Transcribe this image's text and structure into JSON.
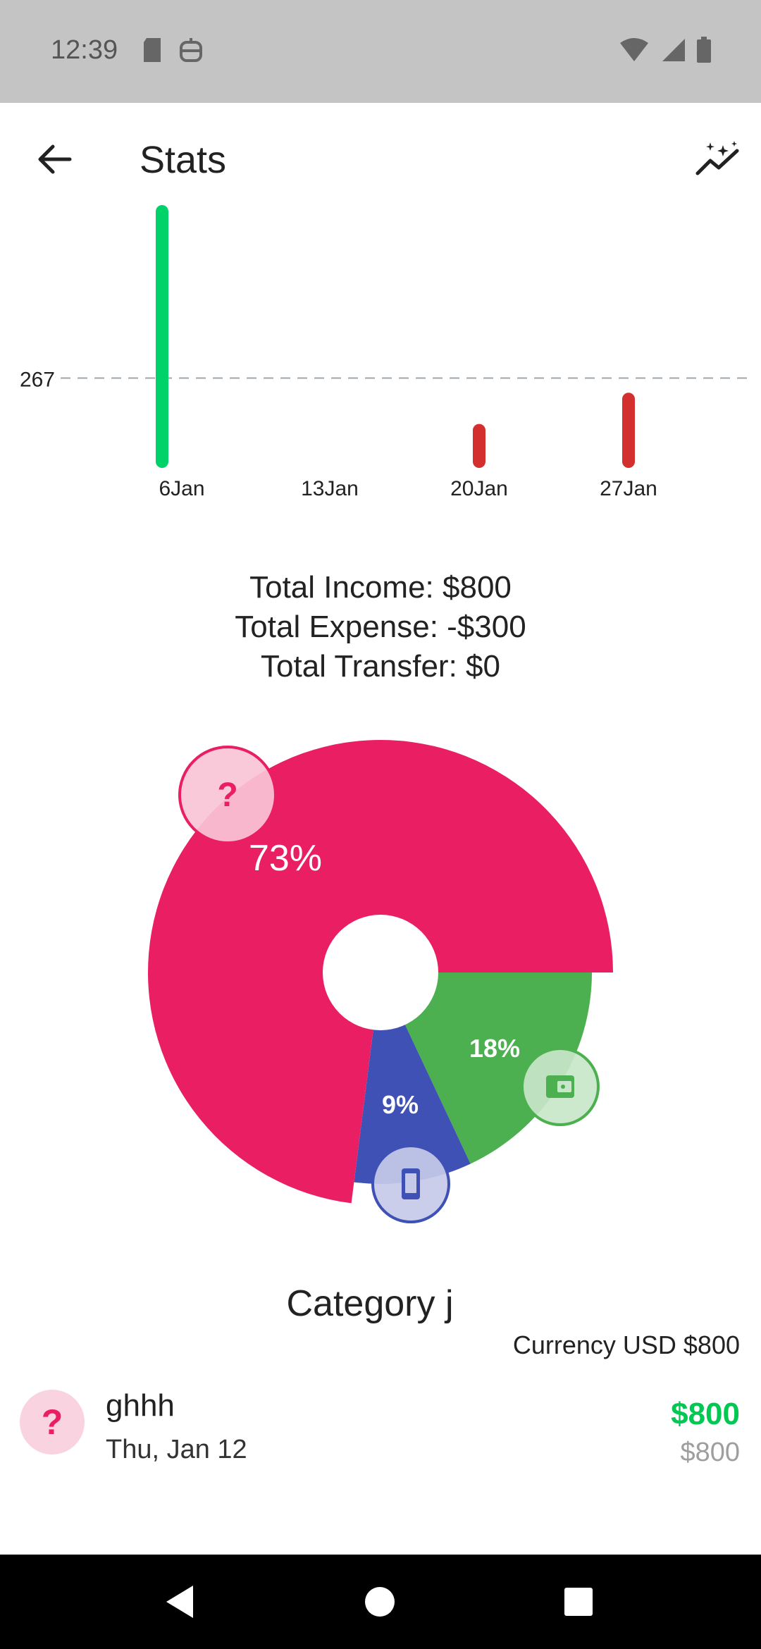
{
  "status_bar": {
    "time": "12:39"
  },
  "app_bar": {
    "title": "Stats"
  },
  "chart_data": [
    {
      "type": "bar",
      "categories": [
        "6Jan",
        "13Jan",
        "20Jan",
        "27Jan"
      ],
      "series": [
        {
          "name": "",
          "values": [
            800,
            0,
            0,
            0
          ],
          "color": "#00d26a"
        },
        {
          "name": "",
          "values": [
            0,
            0,
            100,
            200
          ],
          "color": "#d32f2f"
        }
      ],
      "reference_line": {
        "value": 267,
        "label": "267",
        "style": "dashed"
      },
      "ylim": [
        0,
        800
      ],
      "grid": false
    },
    {
      "type": "pie",
      "labels": [
        "73%",
        "18%",
        "9%"
      ],
      "values": [
        73,
        18,
        9
      ],
      "colors": [
        "#e91e63",
        "#4caf50",
        "#3f51b5"
      ],
      "icons": [
        "question-icon",
        "wallet-icon",
        "phone-icon"
      ]
    }
  ],
  "totals": {
    "income": "Total Income: $800",
    "expense": "Total Expense: -$300",
    "transfer": "Total Transfer: $0"
  },
  "category": {
    "title": "Category j",
    "currency_line": "Currency USD $800"
  },
  "transaction": {
    "icon": "?",
    "name": "ghhh",
    "date": "Thu, Jan 12",
    "amount": "$800",
    "amount_secondary": "$800"
  }
}
